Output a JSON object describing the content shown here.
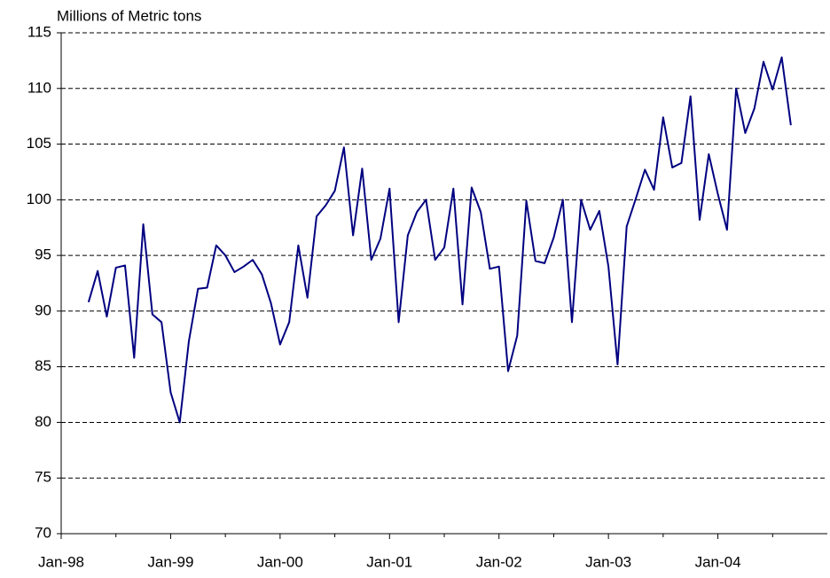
{
  "chart_data": {
    "type": "line",
    "y_label": "Millions of Metric tons",
    "x": [
      "1998-04",
      "1998-05",
      "1998-06",
      "1998-07",
      "1998-08",
      "1998-09",
      "1998-10",
      "1998-11",
      "1998-12",
      "1999-01",
      "1999-02",
      "1999-03",
      "1999-04",
      "1999-05",
      "1999-06",
      "1999-07",
      "1999-08",
      "1999-09",
      "1999-10",
      "1999-11",
      "1999-12",
      "2000-01",
      "2000-02",
      "2000-03",
      "2000-04",
      "2000-05",
      "2000-06",
      "2000-07",
      "2000-08",
      "2000-09",
      "2000-10",
      "2000-11",
      "2000-12",
      "2001-01",
      "2001-02",
      "2001-03",
      "2001-04",
      "2001-05",
      "2001-06",
      "2001-07",
      "2001-08",
      "2001-09",
      "2001-10",
      "2001-11",
      "2001-12",
      "2002-01",
      "2002-02",
      "2002-03",
      "2002-04",
      "2002-05",
      "2002-06",
      "2002-07",
      "2002-08",
      "2002-09",
      "2002-10",
      "2002-11",
      "2002-12",
      "2003-01",
      "2003-02",
      "2003-03",
      "2003-04",
      "2003-05",
      "2003-06",
      "2003-07",
      "2003-08",
      "2003-09",
      "2003-10",
      "2003-11",
      "2003-12",
      "2004-01",
      "2004-02",
      "2004-03",
      "2004-04",
      "2004-05",
      "2004-06",
      "2004-07",
      "2004-08",
      "2004-09"
    ],
    "series": [
      {
        "color": "#000080",
        "values": [
          90.8,
          93.6,
          89.5,
          93.9,
          94.1,
          85.8,
          97.8,
          89.7,
          89.0,
          82.7,
          80.0,
          87.3,
          92.0,
          92.1,
          95.9,
          95.0,
          93.5,
          94.0,
          94.6,
          93.3,
          90.7,
          87.0,
          89.0,
          95.9,
          91.2,
          98.5,
          99.5,
          100.8,
          104.7,
          96.8,
          102.8,
          94.6,
          96.5,
          101.0,
          89.0,
          96.8,
          98.9,
          100.0,
          94.6,
          95.7,
          101.0,
          90.6,
          101.1,
          98.9,
          93.8,
          94.0,
          84.6,
          87.8,
          99.9,
          94.5,
          94.3,
          96.6,
          100.0,
          89.0,
          100.0,
          97.3,
          99.0,
          94.0,
          85.2,
          97.6,
          100.1,
          102.7,
          100.9,
          107.4,
          102.9,
          103.3,
          109.3,
          98.2,
          104.1,
          100.5,
          97.3,
          110.0,
          106.0,
          108.2,
          112.4,
          109.9,
          112.8,
          106.7
        ]
      }
    ],
    "xlim": [
      "1998-01",
      "2004-12"
    ],
    "xticks": [
      {
        "value": "1998-01",
        "label": "Jan-98"
      },
      {
        "value": "1999-01",
        "label": "Jan-99"
      },
      {
        "value": "2000-01",
        "label": "Jan-00"
      },
      {
        "value": "2001-01",
        "label": "Jan-01"
      },
      {
        "value": "2002-01",
        "label": "Jan-02"
      },
      {
        "value": "2003-01",
        "label": "Jan-03"
      },
      {
        "value": "2004-01",
        "label": "Jan-04"
      }
    ],
    "xminor_ticks": [
      "1998-07",
      "1999-07",
      "2000-07",
      "2001-07",
      "2002-07",
      "2003-07",
      "2004-07"
    ],
    "ylim": [
      70,
      115
    ],
    "yticks": [
      70,
      75,
      80,
      85,
      90,
      95,
      100,
      105,
      110,
      115
    ],
    "grid": true
  }
}
